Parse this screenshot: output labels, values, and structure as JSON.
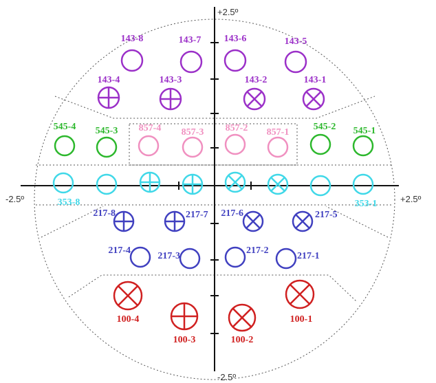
{
  "axes": {
    "top": "+2.5º",
    "bottom": "-2.5º",
    "left": "-2.5º",
    "right": "+2.5º"
  },
  "nodes": [
    {
      "label": "143-8"
    },
    {
      "label": "143-7"
    },
    {
      "label": "143-6"
    },
    {
      "label": "143-5"
    },
    {
      "label": "143-4"
    },
    {
      "label": "143-3"
    },
    {
      "label": "143-2"
    },
    {
      "label": "143-1"
    },
    {
      "label": "545-4"
    },
    {
      "label": "545-3"
    },
    {
      "label": "545-2"
    },
    {
      "label": "545-1"
    },
    {
      "label": "857-4"
    },
    {
      "label": "857-3"
    },
    {
      "label": "857-2"
    },
    {
      "label": "857-1"
    },
    {
      "label": "353-8"
    },
    {
      "label": "353-1"
    },
    {
      "label": "217-8"
    },
    {
      "label": "217-7"
    },
    {
      "label": "217-6"
    },
    {
      "label": "217-5"
    },
    {
      "label": "217-4"
    },
    {
      "label": "217-3"
    },
    {
      "label": "217-2"
    },
    {
      "label": "217-1"
    },
    {
      "label": "100-4"
    },
    {
      "label": "100-3"
    },
    {
      "label": "100-2"
    },
    {
      "label": "100-1"
    }
  ]
}
